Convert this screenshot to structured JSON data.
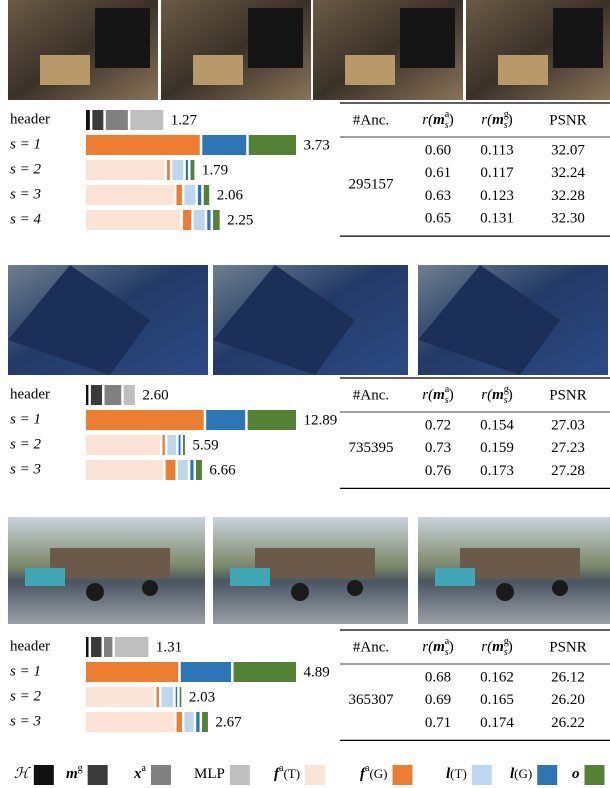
{
  "chart_data": [
    {
      "type": "stacked-bar",
      "categories": [
        "header",
        "s = 1",
        "s = 2",
        "s = 3",
        "s = 4"
      ],
      "series": [
        {
          "values": [
            0.07,
            null,
            null,
            null,
            null
          ]
        },
        {
          "values": [
            0.2,
            null,
            null,
            null,
            null
          ]
        },
        {
          "values": [
            0.4,
            null,
            null,
            null,
            null
          ]
        },
        {
          "values": [
            0.6,
            null,
            null,
            null,
            null
          ]
        },
        {
          "values": [
            null,
            null,
            1.43,
            1.6,
            1.72
          ]
        },
        {
          "values": [
            null,
            2.07,
            0.05,
            0.1,
            0.15
          ]
        },
        {
          "values": [
            null,
            null,
            0.2,
            0.2,
            0.2
          ]
        },
        {
          "values": [
            null,
            0.8,
            0.04,
            0.06,
            0.06
          ]
        },
        {
          "values": [
            null,
            0.86,
            0.07,
            0.1,
            0.12
          ]
        }
      ],
      "totals": [
        "1.27",
        "3.73",
        "1.79",
        "2.06",
        "2.25"
      ]
    },
    {
      "type": "stacked-bar",
      "categories": [
        "header",
        "s = 1",
        "s = 2",
        "s = 3"
      ],
      "series": [
        {
          "values": [
            0.15,
            null,
            null,
            null
          ]
        },
        {
          "values": [
            0.7,
            null,
            null,
            null
          ]
        },
        {
          "values": [
            1.05,
            null,
            null,
            null
          ]
        },
        {
          "values": [
            0.7,
            null,
            null,
            null
          ]
        },
        {
          "values": [
            null,
            null,
            4.65,
            4.85
          ]
        },
        {
          "values": [
            null,
            7.4,
            0.15,
            0.62
          ]
        },
        {
          "values": [
            null,
            null,
            0.55,
            0.62
          ]
        },
        {
          "values": [
            null,
            2.45,
            0.12,
            0.2
          ]
        },
        {
          "values": [
            null,
            3.04,
            0.12,
            0.37
          ]
        }
      ],
      "totals": [
        "2.60",
        "12.89",
        "5.59",
        "6.66"
      ]
    },
    {
      "type": "stacked-bar",
      "categories": [
        "header",
        "s = 1",
        "s = 2",
        "s = 3"
      ],
      "series": [
        {
          "values": [
            0.06,
            null,
            null,
            null
          ]
        },
        {
          "values": [
            0.25,
            null,
            null,
            null
          ]
        },
        {
          "values": [
            0.2,
            null,
            null,
            null
          ]
        },
        {
          "values": [
            0.8,
            null,
            null,
            null
          ]
        },
        {
          "values": [
            null,
            null,
            1.62,
            2.1
          ]
        },
        {
          "values": [
            null,
            2.2,
            0.06,
            0.13
          ]
        },
        {
          "values": [
            null,
            null,
            0.28,
            0.22
          ]
        },
        {
          "values": [
            null,
            1.2,
            0.03,
            0.08
          ]
        },
        {
          "values": [
            null,
            1.49,
            0.04,
            0.14
          ]
        }
      ],
      "totals": [
        "1.31",
        "4.89",
        "2.03",
        "2.67"
      ]
    }
  ],
  "legend": [
    {
      "base": "ℋ",
      "style": "script",
      "color": "#111111"
    },
    {
      "base": "m",
      "sup": "g",
      "style": "bold-italic",
      "color": "#3b3b3b"
    },
    {
      "base": "x",
      "sup": "a",
      "style": "bold-italic",
      "color": "#808080"
    },
    {
      "base": "MLP",
      "style": "plain",
      "color": "#bfbfbf"
    },
    {
      "base": "f",
      "sup": "a",
      "suffix": "(T)",
      "style": "bold-italic",
      "color": "#fbe3d6"
    },
    {
      "base": "f",
      "sup": "a",
      "suffix": "(G)",
      "style": "bold-italic",
      "color": "#ed7d31"
    },
    {
      "base": "l",
      "suffix": "(T)",
      "style": "bold-italic",
      "color": "#bdd7ee"
    },
    {
      "base": "l",
      "suffix": "(G)",
      "style": "bold-italic",
      "color": "#2e75b6"
    },
    {
      "base": "o",
      "style": "bold-italic",
      "color": "#548235"
    }
  ],
  "tables": [
    {
      "columns": [
        "#Anc.",
        {
          "fn": "r(",
          "base": "m",
          "sub": "s",
          "sup": "a",
          "close": ")"
        },
        {
          "fn": "r(",
          "base": "m",
          "sub": "s",
          "sup": "g",
          "close": ")"
        },
        "PSNR"
      ],
      "anchors": "295157",
      "rows": [
        [
          "0.60",
          "0.113",
          "32.07"
        ],
        [
          "0.61",
          "0.117",
          "32.24"
        ],
        [
          "0.63",
          "0.123",
          "32.28"
        ],
        [
          "0.65",
          "0.131",
          "32.30"
        ]
      ]
    },
    {
      "columns": [
        "#Anc.",
        {
          "fn": "r(",
          "base": "m",
          "sub": "s",
          "sup": "a",
          "close": ")"
        },
        {
          "fn": "r(",
          "base": "m",
          "sub": "s",
          "sup": "g",
          "close": ")"
        },
        "PSNR"
      ],
      "anchors": "735395",
      "rows": [
        [
          "0.72",
          "0.154",
          "27.03"
        ],
        [
          "0.73",
          "0.159",
          "27.23"
        ],
        [
          "0.76",
          "0.173",
          "27.28"
        ]
      ]
    },
    {
      "columns": [
        "#Anc.",
        {
          "fn": "r(",
          "base": "m",
          "sub": "s",
          "sup": "a",
          "close": ")"
        },
        {
          "fn": "r(",
          "base": "m",
          "sub": "s",
          "sup": "g",
          "close": ")"
        },
        "PSNR"
      ],
      "anchors": "365307",
      "rows": [
        [
          "0.68",
          "0.162",
          "26.12"
        ],
        [
          "0.69",
          "0.165",
          "26.20"
        ],
        [
          "0.71",
          "0.174",
          "26.22"
        ]
      ]
    }
  ]
}
